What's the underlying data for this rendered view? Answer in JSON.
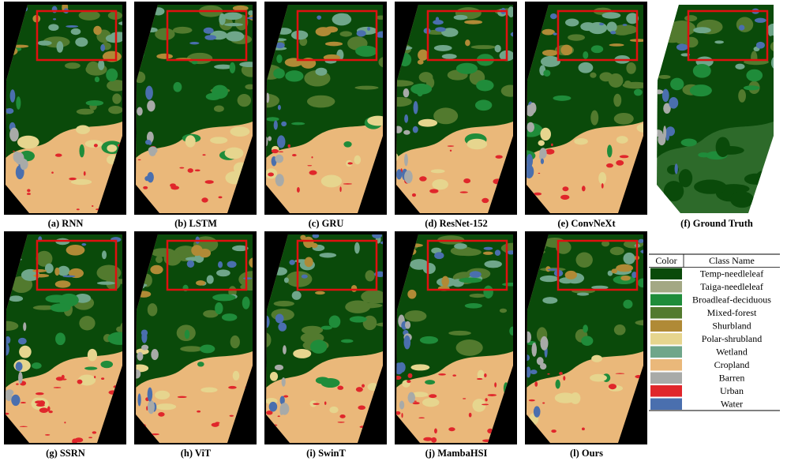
{
  "panels": [
    {
      "caption": "(a) RNN"
    },
    {
      "caption": "(b) LSTM"
    },
    {
      "caption": "(c) GRU"
    },
    {
      "caption": "(d) ResNet-152"
    },
    {
      "caption": "(e) ConvNeXt"
    },
    {
      "caption": "(f) Ground Truth"
    },
    {
      "caption": "(g) SSRN"
    },
    {
      "caption": "(h) ViT"
    },
    {
      "caption": "(i) SwinT"
    },
    {
      "caption": "(j) MambaHSI"
    },
    {
      "caption": "(l) Ours"
    }
  ],
  "legend": {
    "header": [
      "Color",
      "Class Name"
    ],
    "rows": [
      {
        "color": "#0a4a0a",
        "name": "Temp-needleleaf"
      },
      {
        "color": "#a3a884",
        "name": "Taiga-needleleaf"
      },
      {
        "color": "#1f8c3a",
        "name": "Broadleaf-deciduous"
      },
      {
        "color": "#527a2e",
        "name": "Mixed-forest"
      },
      {
        "color": "#b08a36",
        "name": "Shurbland"
      },
      {
        "color": "#e6d58e",
        "name": "Polar-shrubland"
      },
      {
        "color": "#6fa68a",
        "name": "Wetland"
      },
      {
        "color": "#eab87a",
        "name": "Cropland"
      },
      {
        "color": "#a8aaa8",
        "name": "Barren"
      },
      {
        "color": "#e0262b",
        "name": "Urban"
      },
      {
        "color": "#4a6fae",
        "name": "Water"
      }
    ]
  }
}
